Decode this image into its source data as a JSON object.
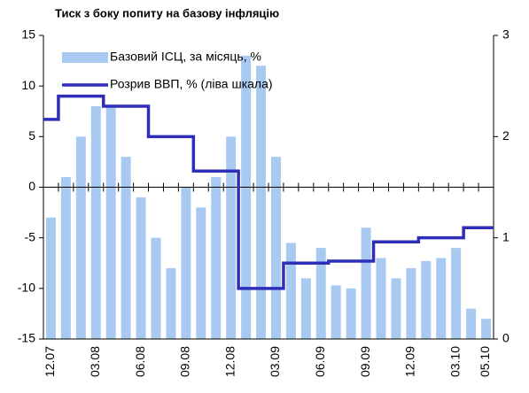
{
  "chart_data": {
    "type": "bar_line",
    "title": "Тиск з боку попиту на базову інфляцію",
    "categories": [
      "12.07",
      null,
      null,
      "03.08",
      null,
      null,
      "06.08",
      null,
      null,
      "09.08",
      null,
      null,
      "12.08",
      null,
      null,
      "03.09",
      null,
      null,
      "06.09",
      null,
      null,
      "09.09",
      null,
      null,
      "12.09",
      null,
      null,
      "03.10",
      null,
      "05.10"
    ],
    "series": [
      {
        "name": "Базовий ІСЦ, за місяць, %",
        "type": "bar",
        "axis": "y2",
        "color": "#a9caf0",
        "values": [
          1.2,
          1.6,
          2.0,
          2.3,
          2.3,
          1.8,
          1.4,
          1.0,
          0.7,
          1.5,
          1.3,
          1.6,
          2.0,
          2.8,
          2.7,
          1.8,
          0.95,
          0.6,
          0.9,
          0.53,
          0.5,
          1.1,
          0.8,
          0.6,
          0.7,
          0.77,
          0.8,
          0.9,
          0.3,
          0.2
        ]
      },
      {
        "name": "Розрив ВВП, % (ліва шкала)",
        "type": "line",
        "axis": "y",
        "color": "#2e2eb8",
        "values": [
          6.7,
          9,
          9,
          9,
          8,
          8,
          8,
          5,
          5,
          5,
          1.6,
          1.6,
          1.6,
          -10,
          -10,
          -10,
          -7.5,
          -7.5,
          -7.5,
          -7.3,
          -7.3,
          -7.3,
          -5.4,
          -5.4,
          -5.4,
          -5,
          -5,
          -5,
          -4,
          -4
        ]
      }
    ],
    "ylim": [
      -15,
      15
    ],
    "yticks": [
      -15,
      -10,
      -5,
      0,
      5,
      10,
      15
    ],
    "y2lim": [
      0,
      3
    ],
    "y2ticks": [
      0,
      1,
      2,
      3
    ],
    "legend": "top-left"
  }
}
